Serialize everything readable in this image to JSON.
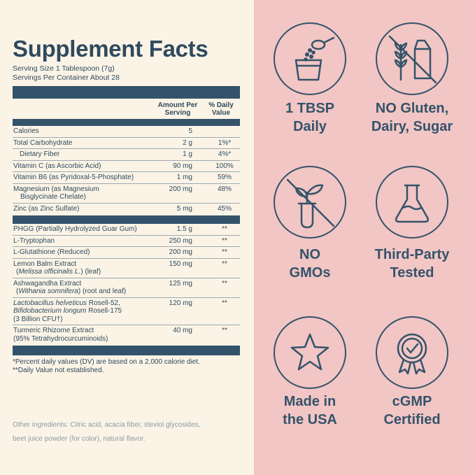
{
  "facts": {
    "title": "Supplement Facts",
    "serving_size": "Serving Size 1 Tablespoon (7g)",
    "servings_per": "Servings Per Container About 28",
    "col_amount_1": "Amount Per",
    "col_amount_2": "Serving",
    "col_dv_1": "% Daily",
    "col_dv_2": "Value",
    "rows_a": [
      {
        "name": "Calories",
        "amount": "5",
        "dv": ""
      },
      {
        "name": "Total Carbohydrate",
        "amount": "2 g",
        "dv": "1%*"
      },
      {
        "name": "Dietary Fiber",
        "amount": "1 g",
        "dv": "4%*"
      },
      {
        "name": "Vitamin C (as Ascorbic Acid)",
        "amount": "90 mg",
        "dv": "100%"
      },
      {
        "name": "Vitamin B6 (as Pyridoxal-5-Phosphate)",
        "amount": "1 mg",
        "dv": "59%"
      },
      {
        "name": "Magnesium (as Magnesium",
        "name2": "Bisglycinate Chelate)",
        "amount": "200 mg",
        "dv": "48%"
      },
      {
        "name": "Zinc (as Zinc Sulfate)",
        "amount": "5 mg",
        "dv": "45%"
      }
    ],
    "rows_b": [
      {
        "name": "PHGG (Partially Hydrolyzed Guar Gum)",
        "amount": "1.5 g",
        "dv": "**"
      },
      {
        "name": "L-Tryptophan",
        "amount": "250 mg",
        "dv": "**"
      },
      {
        "name": "L-Glutathione (Reduced)",
        "amount": "200 mg",
        "dv": "**"
      },
      {
        "name": "Lemon Balm Extract",
        "name2_italic": "Melissa officinalis L.",
        "name2_rest": ") (leaf)",
        "name2_open": "(",
        "amount": "150 mg",
        "dv": "**"
      },
      {
        "name": "Ashwagandha Extract",
        "name2_italic": "Withania somnifera",
        "name2_rest": ") (root and leaf)",
        "name2_open": "(",
        "amount": "125 mg",
        "dv": "**"
      },
      {
        "name_italic": "Lactobacillus helveticus",
        "name_rest": " Rosell-52,",
        "name2_italic": "Bifidobacterium longum",
        "name2_rest": " Rosell-175",
        "name3": "(3 Billion CFU†)",
        "amount": "120 mg",
        "dv": "**"
      },
      {
        "name": "Turmeric Rhizome Extract",
        "name2": "(95% Tetrahydrocurcuminoids)",
        "amount": "40 mg",
        "dv": "**"
      }
    ],
    "foot1": "*Percent daily values (DV) are based on a 2,000 calorie diet.",
    "foot2": "**Daily Value not established.",
    "other1": "Other ingredients: Citric acid, acacia fiber, steviol glycosides,",
    "other2": "beet juice powder (for color), natural flavor."
  },
  "badges": [
    {
      "icon": "spoon-cup-icon",
      "line1": "1 TBSP",
      "line2": "Daily"
    },
    {
      "icon": "wheat-milk-icon",
      "line1": "NO Gluten,",
      "line2": "Dairy, Sugar"
    },
    {
      "icon": "plant-testtube-icon",
      "line1": "NO",
      "line2": "GMOs"
    },
    {
      "icon": "flask-icon",
      "line1": "Third-Party",
      "line2": "Tested"
    },
    {
      "icon": "star-icon",
      "line1": "Made in",
      "line2": "the USA"
    },
    {
      "icon": "check-seal-icon",
      "line1": "cGMP",
      "line2": "Certified"
    }
  ],
  "colors": {
    "navy": "#34536a",
    "cream": "#fbf4e6",
    "pink": "#f2c6c4"
  }
}
